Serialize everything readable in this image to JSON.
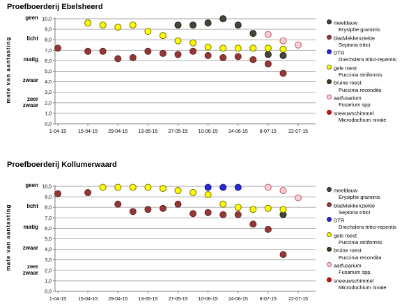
{
  "page": {
    "background": "#ffffff"
  },
  "chart_data": [
    {
      "type": "scatter",
      "title": "Proefboerderij Ebelsheerd",
      "ylabel": "mate van aantasting",
      "ylim": [
        0,
        10
      ],
      "grid": true,
      "y_tick_labels": [
        "0,0",
        "1,0",
        "2,0",
        "3,0",
        "4,0",
        "5,0",
        "6,0",
        "7,0",
        "8,0",
        "9,0",
        "10,0"
      ],
      "severity_labels": [
        {
          "text": "geen",
          "value": 10
        },
        {
          "text": "licht",
          "value": 8
        },
        {
          "text": "matig",
          "value": 6
        },
        {
          "text": "zwaar",
          "value": 4
        },
        {
          "text": "zeer\nzwaar",
          "value": 2.2
        }
      ],
      "x_ticks": [
        {
          "label": "1-04-15",
          "day": 0
        },
        {
          "label": "15-04-15",
          "day": 14
        },
        {
          "label": "29-04-15",
          "day": 28
        },
        {
          "label": "13-05-15",
          "day": 42
        },
        {
          "label": "27-05-15",
          "day": 56
        },
        {
          "label": "10-06-15",
          "day": 70
        },
        {
          "label": "24-06-15",
          "day": 84
        },
        {
          "label": "8-07-15",
          "day": 98
        },
        {
          "label": "22-07-15",
          "day": 112
        }
      ],
      "series": [
        {
          "name": "meeldauw",
          "latin": "Erysiphe graminis",
          "fill": "#45453a",
          "stroke": "#1f1f18",
          "points": [
            [
              56,
              9.4
            ],
            [
              63,
              9.4
            ],
            [
              70,
              9.6
            ],
            [
              77,
              10.0
            ],
            [
              84,
              9.4
            ],
            [
              91,
              8.6
            ],
            [
              98,
              6.6
            ],
            [
              105,
              6.5
            ]
          ]
        },
        {
          "name": "bladvlekkenziekte",
          "latin": "Septoria tritici",
          "fill": "#953735",
          "stroke": "#632423",
          "points": [
            [
              0,
              7.2
            ],
            [
              14,
              6.9
            ],
            [
              21,
              6.9
            ],
            [
              28,
              6.2
            ],
            [
              35,
              6.3
            ],
            [
              42,
              6.9
            ],
            [
              49,
              6.7
            ],
            [
              56,
              6.6
            ],
            [
              63,
              6.9
            ],
            [
              70,
              6.5
            ],
            [
              77,
              6.3
            ],
            [
              84,
              6.4
            ],
            [
              91,
              6.1
            ],
            [
              98,
              5.7
            ],
            [
              105,
              4.8
            ]
          ]
        },
        {
          "name": "DTR",
          "latin": "Drechslera tritici-repentis",
          "fill": "#2929d6",
          "stroke": "#141478",
          "points": []
        },
        {
          "name": "gele roest",
          "latin": "Puccinia striiformis",
          "fill": "#ffff00",
          "stroke": "#6e6e00",
          "points": [
            [
              14,
              9.6
            ],
            [
              21,
              9.4
            ],
            [
              28,
              9.2
            ],
            [
              35,
              9.4
            ],
            [
              42,
              8.8
            ],
            [
              49,
              8.4
            ],
            [
              56,
              7.9
            ],
            [
              63,
              7.7
            ],
            [
              70,
              7.3
            ],
            [
              77,
              7.2
            ],
            [
              84,
              7.2
            ],
            [
              91,
              7.2
            ],
            [
              98,
              7.2
            ],
            [
              105,
              7.1
            ]
          ]
        },
        {
          "name": "bruine roest",
          "latin": "Puccinia recondita",
          "fill": "#4a3a2a",
          "stroke": "#241a10",
          "points": []
        },
        {
          "name": "aarfusarium",
          "latin": "Fusarium spp.",
          "fill": "#f6ced3",
          "stroke": "#c0565e",
          "points": [
            [
              98,
              8.5
            ],
            [
              105,
              7.9
            ],
            [
              112,
              7.5
            ]
          ]
        },
        {
          "name": "sneeuwschimmel",
          "latin": "Microdochium nivale",
          "fill": "#cc1111",
          "stroke": "#8a0000",
          "points": []
        }
      ]
    },
    {
      "type": "scatter",
      "title": "Proefboerderij Kollumerwaard",
      "ylabel": "mate van aantasting",
      "ylim": [
        0,
        10
      ],
      "grid": true,
      "y_tick_labels": [
        "0,0",
        "1,0",
        "2,0",
        "3,0",
        "4,0",
        "5,0",
        "6,0",
        "7,0",
        "8,0",
        "9,0",
        "10,0"
      ],
      "severity_labels": [
        {
          "text": "geen",
          "value": 10
        },
        {
          "text": "licht",
          "value": 8
        },
        {
          "text": "matig",
          "value": 6
        },
        {
          "text": "zwaar",
          "value": 4
        },
        {
          "text": "zeer\nzwaar",
          "value": 2.2
        }
      ],
      "x_ticks": [
        {
          "label": "1-04-15",
          "day": 0
        },
        {
          "label": "15-04-15",
          "day": 14
        },
        {
          "label": "29-04-15",
          "day": 28
        },
        {
          "label": "13-05-15",
          "day": 42
        },
        {
          "label": "27-05-15",
          "day": 56
        },
        {
          "label": "10-06-15",
          "day": 70
        },
        {
          "label": "24-06-15",
          "day": 84
        },
        {
          "label": "8-07-15",
          "day": 98
        },
        {
          "label": "22-07-15",
          "day": 112
        }
      ],
      "series": [
        {
          "name": "meeldauw",
          "latin": "Erysiphe graminis",
          "fill": "#45453a",
          "stroke": "#1f1f18",
          "points": [
            [
              105,
              7.3
            ]
          ]
        },
        {
          "name": "bladvlekkenziekte",
          "latin": "Septoria tritici",
          "fill": "#953735",
          "stroke": "#632423",
          "points": [
            [
              0,
              9.3
            ],
            [
              14,
              9.4
            ],
            [
              28,
              8.3
            ],
            [
              35,
              7.6
            ],
            [
              42,
              7.8
            ],
            [
              49,
              7.9
            ],
            [
              56,
              8.3
            ],
            [
              63,
              7.4
            ],
            [
              70,
              7.5
            ],
            [
              77,
              7.3
            ],
            [
              84,
              7.3
            ],
            [
              91,
              6.4
            ],
            [
              98,
              5.9
            ],
            [
              105,
              3.5
            ]
          ]
        },
        {
          "name": "DTR",
          "latin": "Drechslera tritici-repentis",
          "fill": "#2929d6",
          "stroke": "#141478",
          "points": [
            [
              70,
              9.9
            ],
            [
              77,
              9.9
            ],
            [
              84,
              9.9
            ]
          ]
        },
        {
          "name": "gele roest",
          "latin": "Puccinia striiformis",
          "fill": "#ffff00",
          "stroke": "#6e6e00",
          "points": [
            [
              21,
              9.9
            ],
            [
              28,
              9.9
            ],
            [
              35,
              9.9
            ],
            [
              42,
              9.9
            ],
            [
              49,
              9.8
            ],
            [
              56,
              9.6
            ],
            [
              63,
              9.4
            ],
            [
              70,
              9.2
            ],
            [
              77,
              8.3
            ],
            [
              84,
              8.0
            ],
            [
              91,
              7.8
            ],
            [
              98,
              7.9
            ],
            [
              105,
              7.8
            ]
          ]
        },
        {
          "name": "bruine roest",
          "latin": "Puccinia recondita",
          "fill": "#4a3a2a",
          "stroke": "#241a10",
          "points": []
        },
        {
          "name": "aarfusarium",
          "latin": "Fusarium spp.",
          "fill": "#f6ced3",
          "stroke": "#c0565e",
          "points": [
            [
              98,
              9.9
            ],
            [
              105,
              9.6
            ],
            [
              112,
              8.9
            ]
          ]
        },
        {
          "name": "sneeuwschimmel",
          "latin": "Microdochium nivale",
          "fill": "#cc1111",
          "stroke": "#8a0000",
          "points": []
        }
      ]
    }
  ]
}
